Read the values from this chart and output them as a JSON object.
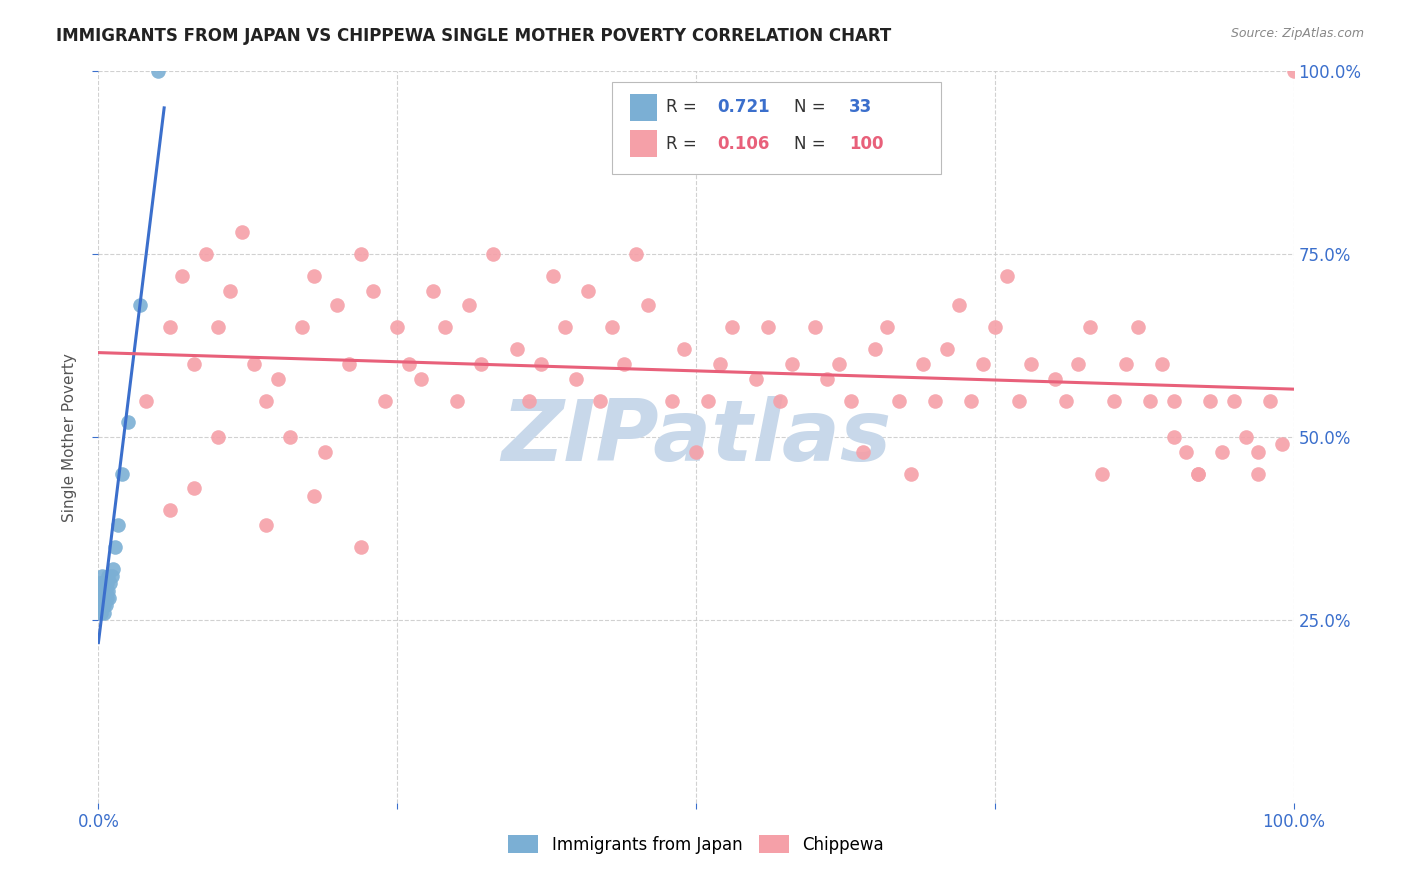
{
  "title": "IMMIGRANTS FROM JAPAN VS CHIPPEWA SINGLE MOTHER POVERTY CORRELATION CHART",
  "source": "Source: ZipAtlas.com",
  "ylabel": "Single Mother Poverty",
  "legend_labels": [
    "Immigrants from Japan",
    "Chippewa"
  ],
  "r_japan": 0.721,
  "n_japan": 33,
  "r_chippewa": 0.106,
  "n_chippewa": 100,
  "color_japan": "#7BAFD4",
  "color_chippewa": "#F5A0A8",
  "color_japan_line": "#3B6FCC",
  "color_chippewa_line": "#E8607A",
  "watermark_text": "ZIPatlas",
  "watermark_color": "#C8D8EA",
  "bg_color": "#FFFFFF",
  "grid_color": "#CCCCCC",
  "title_color": "#222222",
  "source_color": "#888888",
  "axis_color": "#3B6FCC",
  "japan_x": [
    0.001,
    0.001,
    0.001,
    0.001,
    0.002,
    0.002,
    0.002,
    0.003,
    0.003,
    0.003,
    0.004,
    0.004,
    0.004,
    0.005,
    0.005,
    0.005,
    0.005,
    0.006,
    0.006,
    0.007,
    0.007,
    0.008,
    0.008,
    0.009,
    0.01,
    0.011,
    0.012,
    0.014,
    0.016,
    0.02,
    0.025,
    0.035,
    0.05
  ],
  "japan_y": [
    0.27,
    0.28,
    0.29,
    0.3,
    0.26,
    0.28,
    0.3,
    0.27,
    0.29,
    0.31,
    0.27,
    0.29,
    0.3,
    0.26,
    0.27,
    0.28,
    0.3,
    0.27,
    0.29,
    0.28,
    0.3,
    0.29,
    0.31,
    0.28,
    0.3,
    0.31,
    0.32,
    0.35,
    0.38,
    0.45,
    0.52,
    0.68,
    1.0
  ],
  "chippewa_x": [
    0.04,
    0.06,
    0.07,
    0.08,
    0.09,
    0.1,
    0.11,
    0.12,
    0.13,
    0.14,
    0.15,
    0.16,
    0.17,
    0.18,
    0.19,
    0.2,
    0.21,
    0.22,
    0.23,
    0.24,
    0.25,
    0.26,
    0.27,
    0.28,
    0.29,
    0.3,
    0.31,
    0.32,
    0.33,
    0.35,
    0.36,
    0.37,
    0.38,
    0.39,
    0.4,
    0.41,
    0.42,
    0.43,
    0.44,
    0.45,
    0.46,
    0.48,
    0.49,
    0.5,
    0.51,
    0.52,
    0.53,
    0.55,
    0.56,
    0.57,
    0.58,
    0.6,
    0.61,
    0.62,
    0.63,
    0.64,
    0.65,
    0.66,
    0.67,
    0.68,
    0.69,
    0.7,
    0.71,
    0.72,
    0.73,
    0.74,
    0.75,
    0.76,
    0.77,
    0.78,
    0.8,
    0.81,
    0.82,
    0.83,
    0.84,
    0.85,
    0.86,
    0.87,
    0.88,
    0.89,
    0.9,
    0.91,
    0.92,
    0.93,
    0.94,
    0.95,
    0.96,
    0.97,
    0.98,
    0.99,
    0.06,
    0.08,
    0.1,
    0.14,
    0.18,
    0.22,
    0.9,
    0.92,
    0.97,
    1.0
  ],
  "chippewa_y": [
    0.55,
    0.65,
    0.72,
    0.6,
    0.75,
    0.65,
    0.7,
    0.78,
    0.6,
    0.55,
    0.58,
    0.5,
    0.65,
    0.72,
    0.48,
    0.68,
    0.6,
    0.75,
    0.7,
    0.55,
    0.65,
    0.6,
    0.58,
    0.7,
    0.65,
    0.55,
    0.68,
    0.6,
    0.75,
    0.62,
    0.55,
    0.6,
    0.72,
    0.65,
    0.58,
    0.7,
    0.55,
    0.65,
    0.6,
    0.75,
    0.68,
    0.55,
    0.62,
    0.48,
    0.55,
    0.6,
    0.65,
    0.58,
    0.65,
    0.55,
    0.6,
    0.65,
    0.58,
    0.6,
    0.55,
    0.48,
    0.62,
    0.65,
    0.55,
    0.45,
    0.6,
    0.55,
    0.62,
    0.68,
    0.55,
    0.6,
    0.65,
    0.72,
    0.55,
    0.6,
    0.58,
    0.55,
    0.6,
    0.65,
    0.45,
    0.55,
    0.6,
    0.65,
    0.55,
    0.6,
    0.55,
    0.48,
    0.45,
    0.55,
    0.48,
    0.55,
    0.5,
    0.45,
    0.55,
    0.49,
    0.4,
    0.43,
    0.5,
    0.38,
    0.42,
    0.35,
    0.5,
    0.45,
    0.48,
    1.0
  ],
  "xlim": [
    0,
    1.0
  ],
  "ylim": [
    0,
    1.0
  ],
  "x_ticks": [
    0.0,
    0.25,
    0.5,
    0.75,
    1.0
  ],
  "x_tick_labels": [
    "0.0%",
    "",
    "",
    "",
    "100.0%"
  ],
  "y_ticks_right": [
    0.25,
    0.5,
    0.75,
    1.0
  ],
  "y_tick_labels_right": [
    "25.0%",
    "50.0%",
    "75.0%",
    "100.0%"
  ]
}
